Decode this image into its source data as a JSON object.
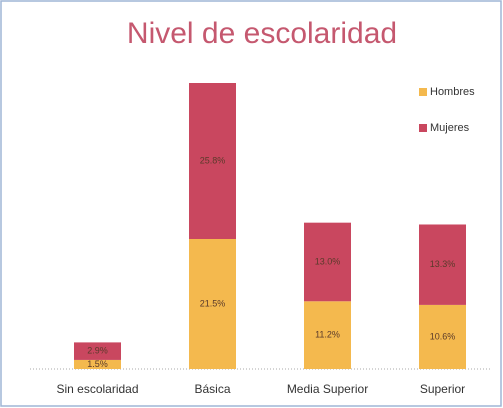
{
  "chart_data": {
    "type": "stacked_bar",
    "title": "Nivel de escolaridad",
    "categories": [
      "Sin escolaridad",
      "Básica",
      "Media Superior",
      "Superior"
    ],
    "series": [
      {
        "name": "Hombres",
        "color": "#f4b94e",
        "values": [
          1.5,
          21.5,
          11.2,
          10.6
        ],
        "value_labels": [
          "1.5%",
          "21.5%",
          "11.2%",
          "10.6%"
        ]
      },
      {
        "name": "Mujeres",
        "color": "#c9475f",
        "values": [
          2.9,
          25.8,
          13.0,
          13.3
        ],
        "value_labels": [
          "2.9%",
          "25.8%",
          "13.0%",
          "13.3%"
        ]
      }
    ],
    "legend": "top-right"
  }
}
